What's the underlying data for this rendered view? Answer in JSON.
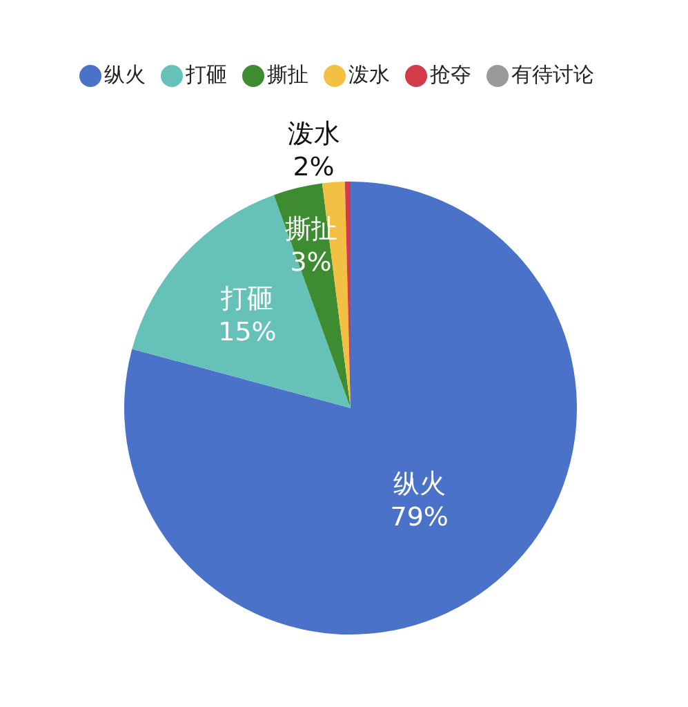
{
  "chart_data": {
    "type": "pie",
    "categories": [
      "纵火",
      "打砸",
      "撕扯",
      "泼水",
      "抢夺",
      "有待讨论"
    ],
    "values": [
      79.2,
      15.3,
      3.5,
      1.6,
      0.4,
      0
    ],
    "value_labels": [
      "79%",
      "15%",
      "3%",
      "2%",
      null,
      null
    ],
    "colors": [
      "#4a72c8",
      "#66c2b8",
      "#3d8c32",
      "#f2c043",
      "#d33a4a",
      "#999999"
    ],
    "legend": "top"
  }
}
